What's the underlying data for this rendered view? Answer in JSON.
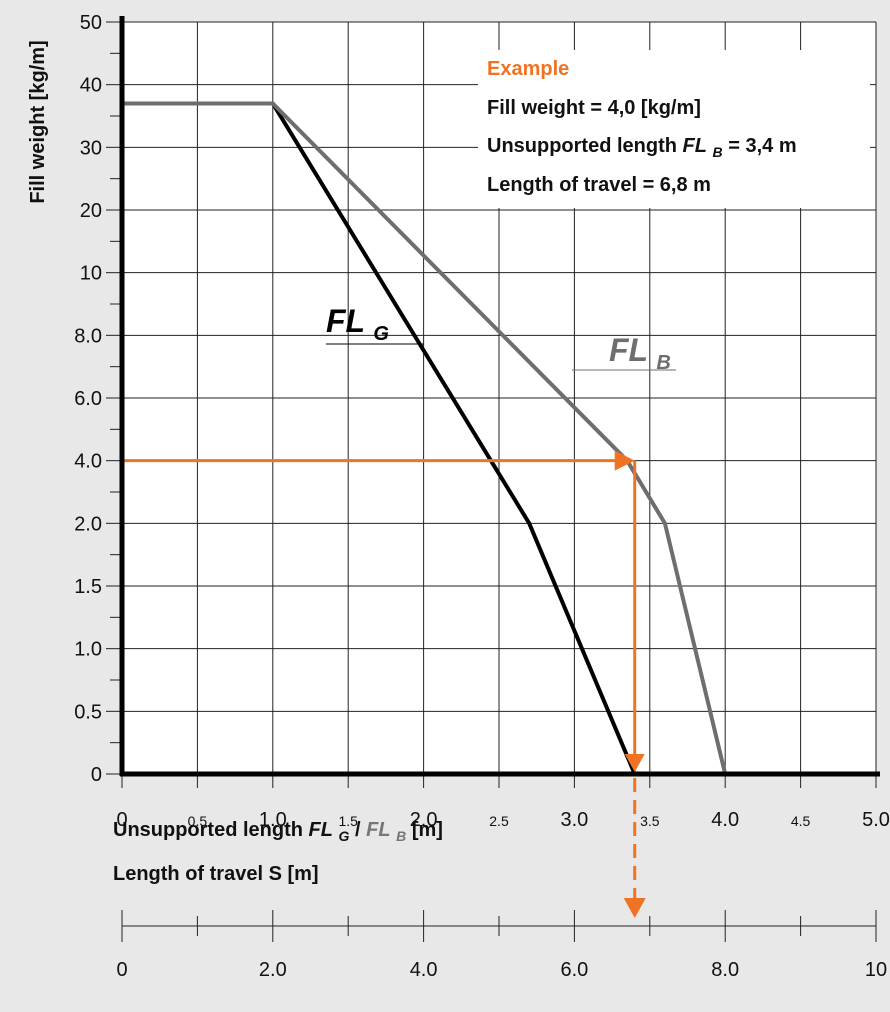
{
  "colors": {
    "background": "#e8e8e8",
    "plot_background": "#ffffff",
    "fl_g_line": "#000000",
    "fl_b_line": "#6e6e6e",
    "example_accent": "#f07323",
    "grid": "#222222"
  },
  "chart_data": {
    "type": "line",
    "ylabel": "Fill weight [kg/m]",
    "xlabel_prefix": "Unsupported length ",
    "xlabel_fl_g": "FL",
    "xlabel_fl_g_sub": "G",
    "xlabel_slash": " / ",
    "xlabel_fl_b": "FL",
    "xlabel_fl_b_sub": "B",
    "xlabel_suffix": " [m]",
    "travel_label": "Length of travel S [m]",
    "x_ticks": [
      {
        "value": 0,
        "label": "0",
        "major": true
      },
      {
        "value": 0.5,
        "label": "0.5",
        "major": false
      },
      {
        "value": 1.0,
        "label": "1.0",
        "major": true
      },
      {
        "value": 1.5,
        "label": "1.5",
        "major": false
      },
      {
        "value": 2.0,
        "label": "2.0",
        "major": true
      },
      {
        "value": 2.5,
        "label": "2.5",
        "major": false
      },
      {
        "value": 3.0,
        "label": "3.0",
        "major": true
      },
      {
        "value": 3.5,
        "label": "3.5",
        "major": false
      },
      {
        "value": 4.0,
        "label": "4.0",
        "major": true
      },
      {
        "value": 4.5,
        "label": "4.5",
        "major": false
      },
      {
        "value": 5.0,
        "label": "5.0",
        "major": true
      }
    ],
    "y_ticks": [
      {
        "value": 0,
        "label": "0"
      },
      {
        "value": 0.5,
        "label": "0.5"
      },
      {
        "value": 1.0,
        "label": "1.0"
      },
      {
        "value": 1.5,
        "label": "1.5"
      },
      {
        "value": 2.0,
        "label": "2.0"
      },
      {
        "value": 4.0,
        "label": "4.0"
      },
      {
        "value": 6.0,
        "label": "6.0"
      },
      {
        "value": 8.0,
        "label": "8.0"
      },
      {
        "value": 10,
        "label": "10"
      },
      {
        "value": 20,
        "label": "20"
      },
      {
        "value": 30,
        "label": "30"
      },
      {
        "value": 40,
        "label": "40"
      },
      {
        "value": 50,
        "label": "50"
      }
    ],
    "travel_ticks": [
      {
        "value": 0,
        "label": "0"
      },
      {
        "value": 2.0,
        "label": "2.0"
      },
      {
        "value": 4.0,
        "label": "4.0"
      },
      {
        "value": 6.0,
        "label": "6.0"
      },
      {
        "value": 8.0,
        "label": "8.0"
      },
      {
        "value": 10,
        "label": "10"
      }
    ],
    "series": [
      {
        "name": "FL",
        "subscript": "G",
        "points": [
          [
            0,
            37.0
          ],
          [
            1.0,
            37.0
          ],
          [
            2.7,
            2.0
          ],
          [
            3.4,
            0
          ]
        ]
      },
      {
        "name": "FL",
        "subscript": "B",
        "points": [
          [
            0,
            37.0
          ],
          [
            1.0,
            37.0
          ],
          [
            3.35,
            4.0
          ],
          [
            3.6,
            2.0
          ],
          [
            4.0,
            0
          ]
        ]
      }
    ],
    "example": {
      "title": "Example",
      "line1": "Fill weight = 4,0 [kg/m]",
      "line2_prefix": "Unsupported length ",
      "line2_fl": "FL",
      "line2_sub": "B",
      "line2_suffix": " = 3,4 m",
      "line3": "Length of travel = 6,8 m",
      "fill_weight": 4.0,
      "unsupported_length": 3.4,
      "length_of_travel": 6.8
    }
  }
}
